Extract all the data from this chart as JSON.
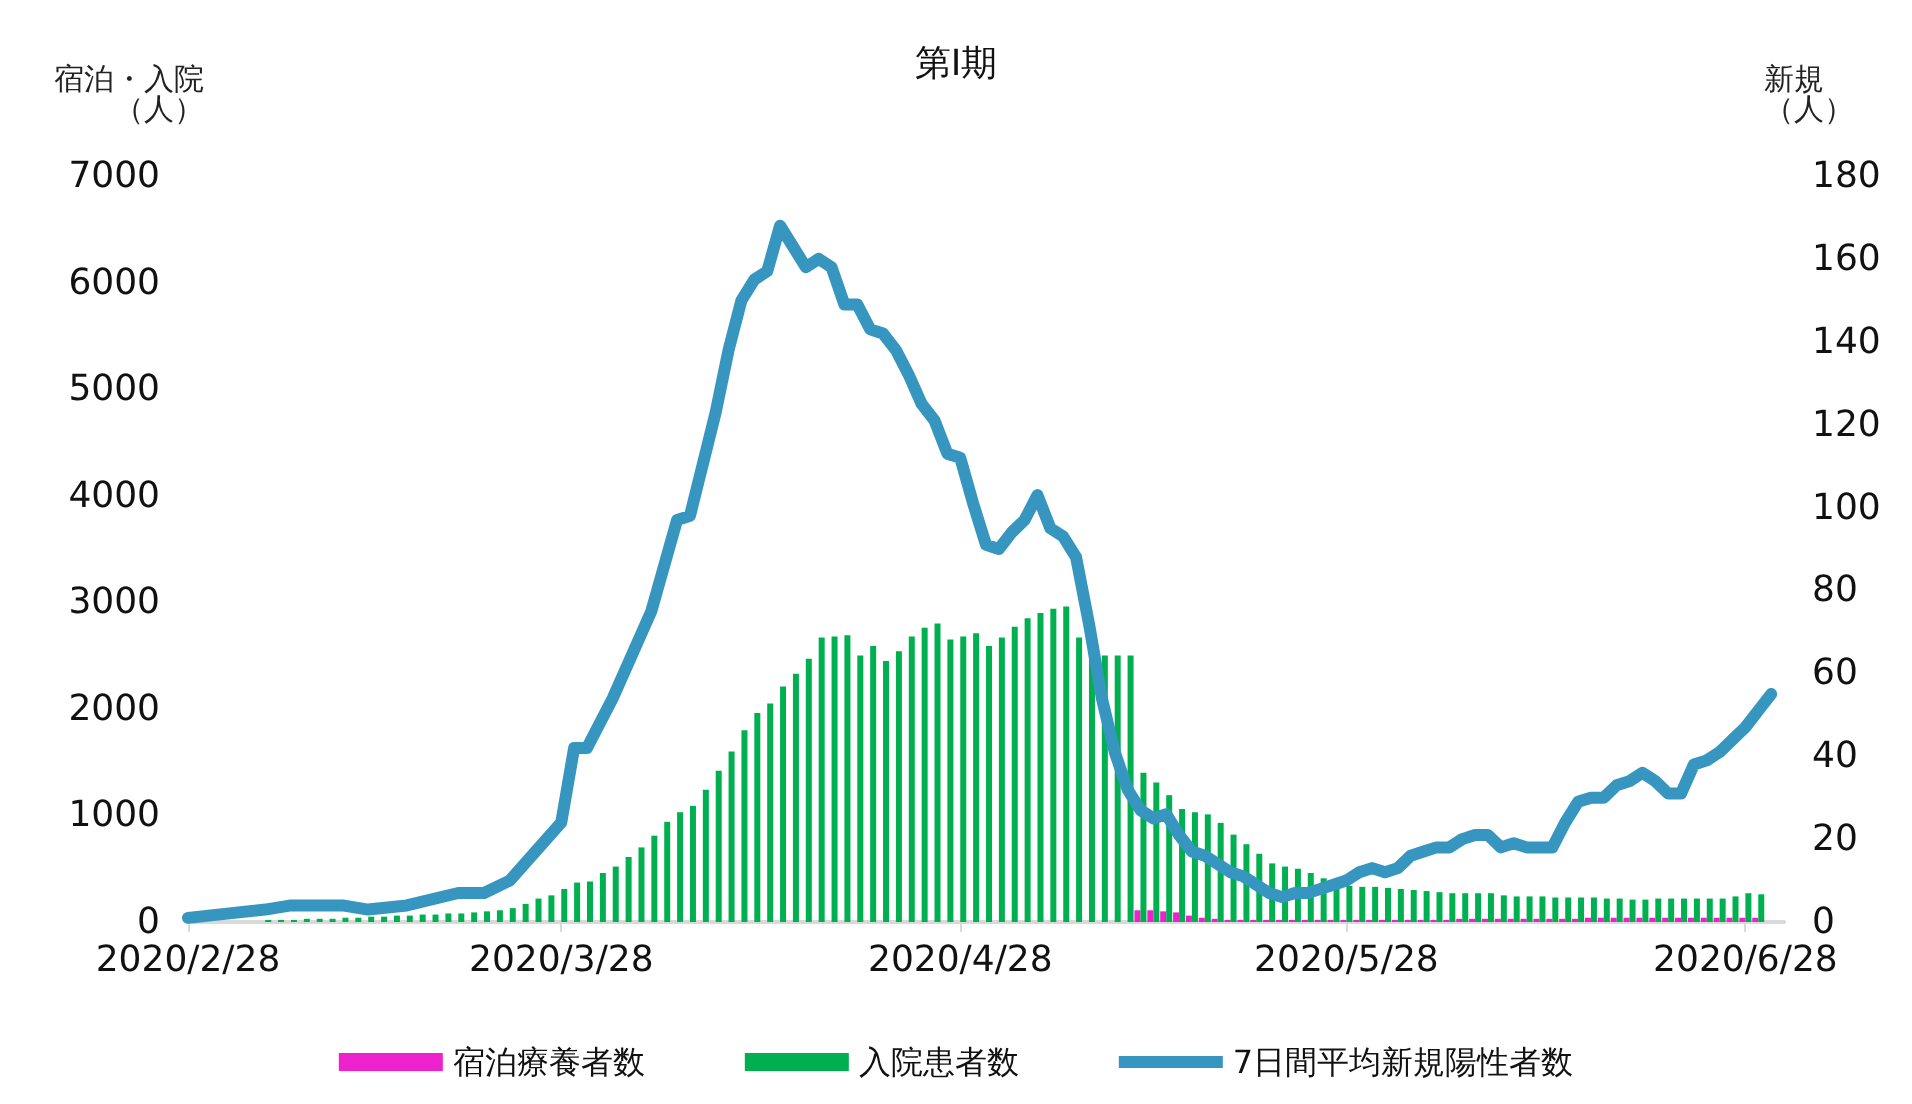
{
  "chart_data": {
    "type": "bar",
    "title": "第Ⅰ期",
    "ylabel": "宿泊・入院（人）",
    "y2label": "新規（人）",
    "x": [
      "2020-03-05",
      "2020-03-06",
      "2020-03-07",
      "2020-03-08",
      "2020-03-09",
      "2020-03-10",
      "2020-03-11",
      "2020-03-12",
      "2020-03-13",
      "2020-03-14",
      "2020-03-15",
      "2020-03-16",
      "2020-03-17",
      "2020-03-18",
      "2020-03-19",
      "2020-03-20",
      "2020-03-21",
      "2020-03-22",
      "2020-03-23",
      "2020-03-24",
      "2020-03-25",
      "2020-03-26",
      "2020-03-27",
      "2020-03-28",
      "2020-03-29",
      "2020-03-30",
      "2020-03-31",
      "2020-04-01",
      "2020-04-02",
      "2020-04-03",
      "2020-04-04",
      "2020-04-05",
      "2020-04-06",
      "2020-04-07",
      "2020-04-08",
      "2020-04-09",
      "2020-04-10",
      "2020-04-11",
      "2020-04-12",
      "2020-04-13",
      "2020-04-14",
      "2020-04-15",
      "2020-04-16",
      "2020-04-17",
      "2020-04-18",
      "2020-04-19",
      "2020-04-20",
      "2020-04-21",
      "2020-04-22",
      "2020-04-23",
      "2020-04-24",
      "2020-04-25",
      "2020-04-26",
      "2020-04-27",
      "2020-04-28",
      "2020-04-29",
      "2020-04-30",
      "2020-05-01",
      "2020-05-02",
      "2020-05-03",
      "2020-05-04",
      "2020-05-05",
      "2020-05-06",
      "2020-05-07",
      "2020-05-08",
      "2020-05-09",
      "2020-05-10",
      "2020-05-11",
      "2020-05-12",
      "2020-05-13",
      "2020-05-14",
      "2020-05-15",
      "2020-05-16",
      "2020-05-17",
      "2020-05-18",
      "2020-05-19",
      "2020-05-20",
      "2020-05-21",
      "2020-05-22",
      "2020-05-23",
      "2020-05-24",
      "2020-05-25",
      "2020-05-26",
      "2020-05-27",
      "2020-05-28",
      "2020-05-29",
      "2020-05-30",
      "2020-05-31",
      "2020-06-01",
      "2020-06-02",
      "2020-06-03",
      "2020-06-04",
      "2020-06-05",
      "2020-06-06",
      "2020-06-07",
      "2020-06-08",
      "2020-06-09",
      "2020-06-10",
      "2020-06-11",
      "2020-06-12",
      "2020-06-13",
      "2020-06-14",
      "2020-06-15",
      "2020-06-16",
      "2020-06-17",
      "2020-06-18",
      "2020-06-19",
      "2020-06-20",
      "2020-06-21",
      "2020-06-22",
      "2020-06-23",
      "2020-06-24",
      "2020-06-25",
      "2020-06-26",
      "2020-06-27",
      "2020-06-28",
      "2020-06-29"
    ],
    "series": [
      {
        "name": "宿泊療養者数",
        "color": "#ee22cc",
        "values": [
          null,
          null,
          null,
          null,
          null,
          null,
          null,
          null,
          null,
          null,
          null,
          null,
          null,
          null,
          null,
          null,
          null,
          null,
          null,
          null,
          null,
          null,
          null,
          null,
          null,
          null,
          null,
          null,
          null,
          null,
          null,
          null,
          null,
          null,
          null,
          null,
          null,
          null,
          null,
          null,
          null,
          null,
          null,
          null,
          null,
          null,
          null,
          null,
          null,
          null,
          null,
          null,
          null,
          null,
          null,
          null,
          null,
          null,
          null,
          null,
          null,
          null,
          null,
          null,
          null,
          null,
          null,
          null,
          110,
          110,
          100,
          90,
          60,
          40,
          30,
          20,
          20,
          20,
          20,
          20,
          20,
          20,
          20,
          20,
          20,
          20,
          20,
          20,
          20,
          20,
          20,
          20,
          20,
          30,
          30,
          30,
          30,
          30,
          30,
          30,
          30,
          30,
          30,
          40,
          40,
          40,
          40,
          40,
          40,
          40,
          40,
          40,
          40,
          40,
          40,
          40,
          40
        ]
      },
      {
        "name": "入院患者数",
        "color": "#00b050",
        "values": [
          20,
          20,
          20,
          30,
          30,
          30,
          40,
          40,
          50,
          50,
          60,
          60,
          70,
          70,
          80,
          80,
          90,
          100,
          110,
          130,
          170,
          220,
          250,
          310,
          370,
          380,
          460,
          520,
          610,
          700,
          810,
          940,
          1030,
          1090,
          1240,
          1420,
          1600,
          1800,
          1960,
          2050,
          2210,
          2330,
          2470,
          2670,
          2680,
          2690,
          2500,
          2590,
          2450,
          2540,
          2680,
          2760,
          2800,
          2650,
          2680,
          2710,
          2590,
          2670,
          2770,
          2850,
          2900,
          2940,
          2960,
          2670,
          2500,
          2500,
          2500,
          2500,
          1400,
          1310,
          1190,
          1060,
          1030,
          1010,
          930,
          820,
          730,
          640,
          550,
          520,
          500,
          460,
          410,
          370,
          340,
          330,
          330,
          320,
          310,
          300,
          290,
          280,
          270,
          270,
          270,
          270,
          250,
          240,
          240,
          240,
          230,
          230,
          230,
          230,
          220,
          220,
          210,
          210,
          220,
          220,
          220,
          220,
          220,
          220,
          240,
          270,
          260
        ]
      },
      {
        "name": "7日間平均新規陽性者数",
        "color": "#3796c0",
        "type": "line",
        "axis": "y2",
        "marker": "none",
        "x": [
          "2020-02-28",
          "2020-03-05",
          "2020-03-07",
          "2020-03-11",
          "2020-03-13",
          "2020-03-16",
          "2020-03-20",
          "2020-03-22",
          "2020-03-24",
          "2020-03-28",
          "2020-03-29",
          "2020-03-30",
          "2020-04-01",
          "2020-04-04",
          "2020-04-06",
          "2020-04-07",
          "2020-04-09",
          "2020-04-10",
          "2020-04-11",
          "2020-04-12",
          "2020-04-13",
          "2020-04-14",
          "2020-04-16",
          "2020-04-17",
          "2020-04-18",
          "2020-04-19",
          "2020-04-20",
          "2020-04-21",
          "2020-04-22",
          "2020-04-23",
          "2020-04-24",
          "2020-04-25",
          "2020-04-26",
          "2020-04-27",
          "2020-04-28",
          "2020-04-29",
          "2020-04-30",
          "2020-05-01",
          "2020-05-02",
          "2020-05-03",
          "2020-05-04",
          "2020-05-05",
          "2020-05-06",
          "2020-05-07",
          "2020-05-08",
          "2020-05-09",
          "2020-05-10",
          "2020-05-11",
          "2020-05-12",
          "2020-05-13",
          "2020-05-14",
          "2020-05-15",
          "2020-05-16",
          "2020-05-17",
          "2020-05-18",
          "2020-05-19",
          "2020-05-20",
          "2020-05-21",
          "2020-05-22",
          "2020-05-23",
          "2020-05-24",
          "2020-05-25",
          "2020-05-26",
          "2020-05-27",
          "2020-05-28",
          "2020-05-29",
          "2020-05-30",
          "2020-05-31",
          "2020-06-01",
          "2020-06-02",
          "2020-06-03",
          "2020-06-04",
          "2020-06-05",
          "2020-06-06",
          "2020-06-07",
          "2020-06-08",
          "2020-06-09",
          "2020-06-10",
          "2020-06-11",
          "2020-06-12",
          "2020-06-13",
          "2020-06-14",
          "2020-06-15",
          "2020-06-16",
          "2020-06-17",
          "2020-06-18",
          "2020-06-19",
          "2020-06-20",
          "2020-06-21",
          "2020-06-22",
          "2020-06-23",
          "2020-06-24",
          "2020-06-25",
          "2020-06-26",
          "2020-06-27",
          "2020-06-28",
          "2020-06-29",
          "2020-06-30"
        ],
        "values": [
          1,
          3,
          4,
          4,
          3,
          4,
          7,
          7,
          10,
          24,
          42,
          42,
          54,
          75,
          97,
          98,
          123,
          138,
          150,
          155,
          157,
          168,
          158,
          160,
          158,
          149,
          149,
          143,
          142,
          138,
          132,
          125,
          121,
          113,
          112,
          101,
          91,
          90,
          94,
          97,
          103,
          95,
          93,
          88,
          72,
          54,
          41,
          32,
          27,
          25,
          26,
          21,
          17,
          16,
          14,
          12,
          11,
          9,
          7,
          6,
          7,
          7,
          8,
          9,
          10,
          12,
          13,
          12,
          13,
          16,
          17,
          18,
          18,
          20,
          21,
          21,
          18,
          19,
          18,
          18,
          18,
          24,
          29,
          30,
          30,
          33,
          34,
          36,
          34,
          31,
          31,
          38,
          39,
          41,
          44,
          47,
          51,
          55
        ]
      }
    ],
    "xlim": [
      "2020-02-28",
      "2020-07-01"
    ],
    "xticks": [
      {
        "value": "2020-02-28",
        "label": "2020/2/28"
      },
      {
        "value": "2020-03-28",
        "label": "2020/3/28"
      },
      {
        "value": "2020-04-28",
        "label": "2020/4/28"
      },
      {
        "value": "2020-05-28",
        "label": "2020/5/28"
      },
      {
        "value": "2020-06-28",
        "label": "2020/6/28"
      }
    ],
    "ylim": [
      0,
      7000
    ],
    "yticks": [
      0,
      1000,
      2000,
      3000,
      4000,
      5000,
      6000,
      7000
    ],
    "y2lim": [
      0,
      180
    ],
    "y2ticks": [
      0,
      20,
      40,
      60,
      80,
      100,
      120,
      140,
      160,
      180
    ],
    "legend": "bottom"
  }
}
